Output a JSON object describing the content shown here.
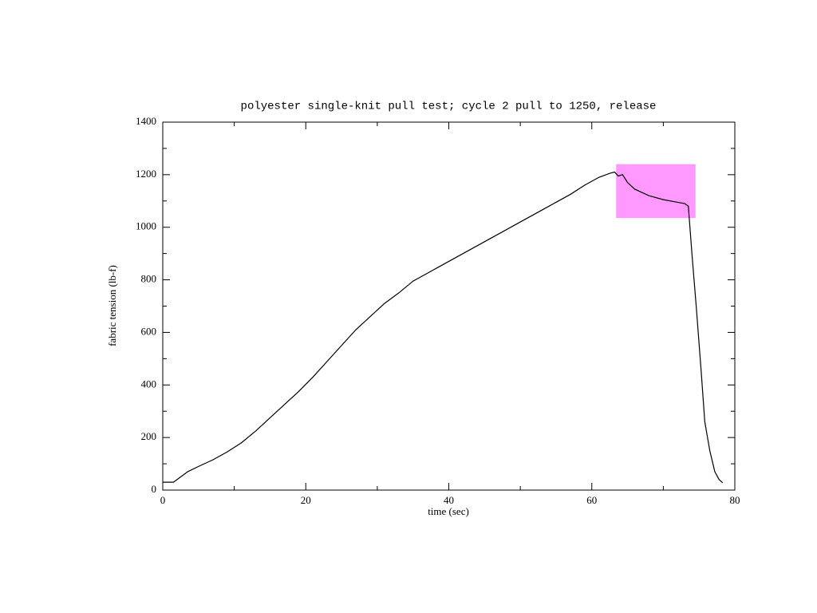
{
  "chart_data": {
    "type": "line",
    "title": "polyester single-knit pull test; cycle 2 pull to 1250, release",
    "x_label": "time (sec)",
    "y_label": "fabric tension (lb-f)",
    "xlim": [
      0,
      80
    ],
    "ylim": [
      0,
      1400
    ],
    "xticks": [
      0,
      20,
      40,
      60,
      80
    ],
    "yticks": [
      0,
      200,
      400,
      600,
      800,
      1000,
      1200,
      1400
    ],
    "xminorticks": [
      10,
      30,
      50,
      70
    ],
    "yminorticks": [
      100,
      300,
      500,
      700,
      900,
      1100,
      1300
    ],
    "highlight": {
      "xlim": [
        63.4,
        74.5
      ],
      "ylim": [
        1035,
        1240
      ],
      "color": "#ff99ff"
    },
    "series": [
      {
        "color": "#000000",
        "x": [
          0,
          1.5,
          2.5,
          3.5,
          5,
          7,
          9,
          11,
          13,
          15,
          17,
          19,
          21,
          23,
          25,
          27,
          29,
          31,
          33,
          35,
          37,
          39,
          41,
          43,
          45,
          47,
          49,
          51,
          53,
          55,
          57,
          59,
          61,
          62.5,
          63.2,
          63.7,
          64.3,
          65,
          66,
          68,
          70,
          72,
          73,
          73.5,
          74,
          74.6,
          75.3,
          75.8,
          76.5,
          77.2,
          77.8,
          78.3
        ],
        "values": [
          30,
          30,
          50,
          70,
          90,
          115,
          145,
          180,
          225,
          275,
          325,
          375,
          430,
          490,
          550,
          610,
          660,
          710,
          750,
          795,
          825,
          855,
          885,
          915,
          945,
          975,
          1005,
          1035,
          1065,
          1095,
          1125,
          1160,
          1190,
          1205,
          1210,
          1195,
          1200,
          1170,
          1145,
          1120,
          1105,
          1095,
          1090,
          1080,
          900,
          700,
          450,
          260,
          150,
          70,
          40,
          28
        ]
      }
    ]
  }
}
